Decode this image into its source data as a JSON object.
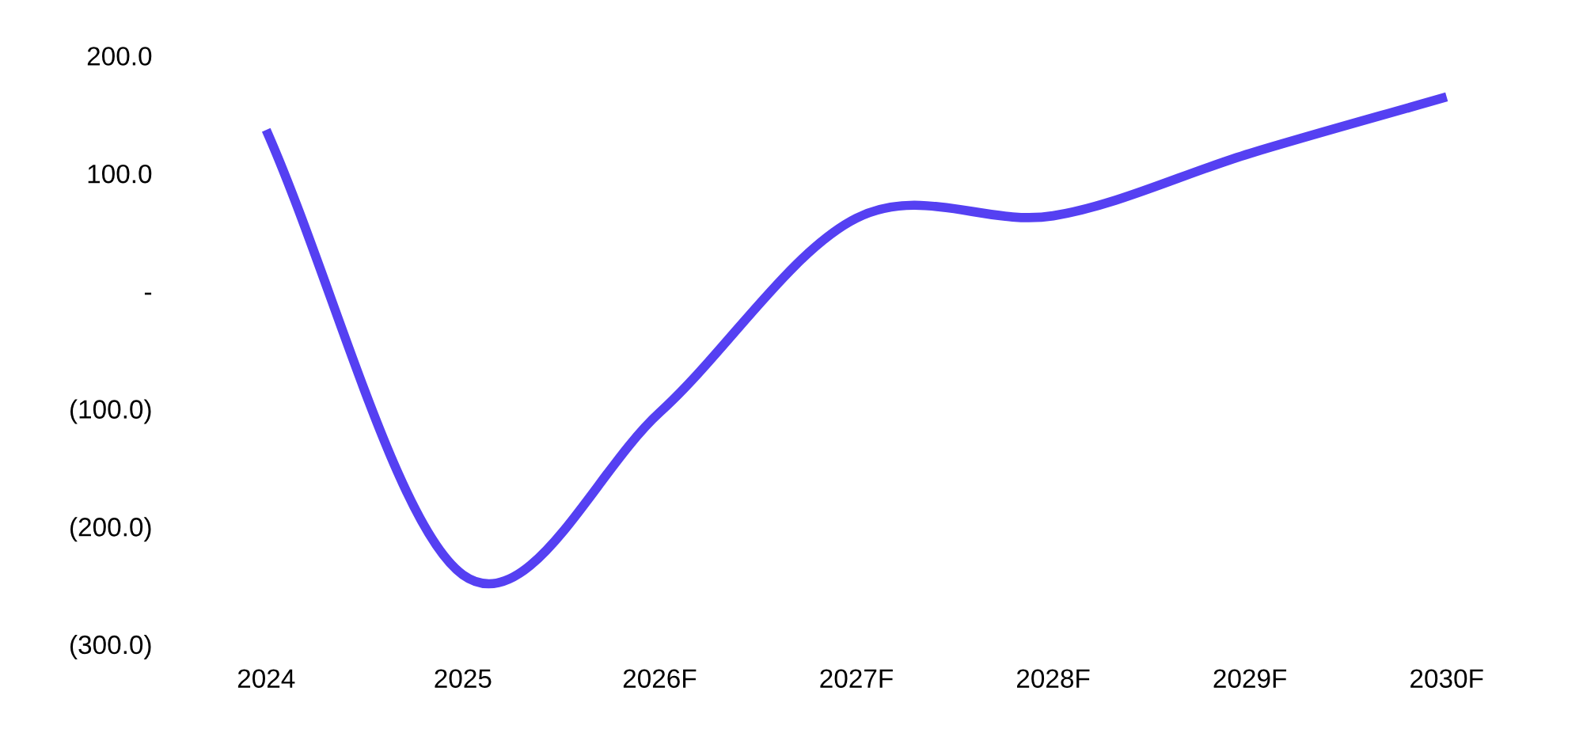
{
  "chart_data": {
    "type": "line",
    "categories": [
      "2024",
      "2025",
      "2026F",
      "2027F",
      "2028F",
      "2029F",
      "2030F"
    ],
    "series": [
      {
        "color": "#5540f2",
        "values": [
          137,
          -241,
          -103,
          62,
          64,
          117,
          165
        ]
      }
    ],
    "ylim": [
      -300,
      200
    ],
    "yticks": [
      {
        "value": 200,
        "label": "200.0"
      },
      {
        "value": 100,
        "label": "100.0"
      },
      {
        "value": 0,
        "label": "-"
      },
      {
        "value": -100,
        "label": "(100.0)"
      },
      {
        "value": -200,
        "label": "(200.0)"
      },
      {
        "value": -300,
        "label": "(300.0)"
      }
    ],
    "grid": false,
    "line_style": "solid"
  }
}
